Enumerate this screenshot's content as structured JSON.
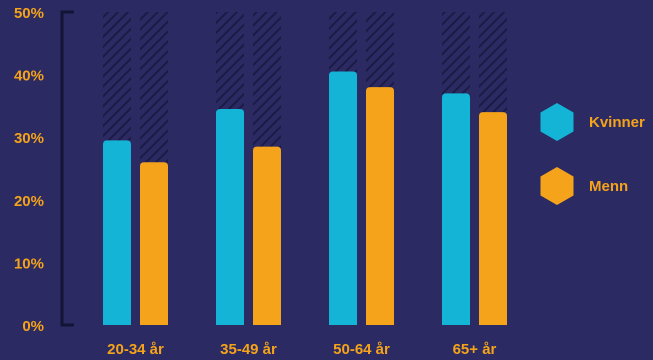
{
  "chart_data": {
    "type": "bar",
    "categories": [
      "20-34 år",
      "35-49 år",
      "50-64 år",
      "65+ år"
    ],
    "series": [
      {
        "name": "Kvinner",
        "values": [
          29.5,
          34.5,
          40.5,
          37
        ],
        "color": "#13b4d6"
      },
      {
        "name": "Menn",
        "values": [
          26,
          28.5,
          38,
          34
        ],
        "color": "#f5a31a"
      }
    ],
    "ylim": [
      0,
      50
    ],
    "yticks": [
      "0%",
      "10%",
      "20%",
      "30%",
      "40%",
      "50%"
    ],
    "ytick_values": [
      0,
      10,
      20,
      30,
      40,
      50
    ],
    "legend_position": "right",
    "background_bar_pattern": "hatched",
    "colors": {
      "background": "#2b2a63",
      "axis": "#141436",
      "hatch": "#1c1b45",
      "label": "#f5a31a"
    }
  }
}
